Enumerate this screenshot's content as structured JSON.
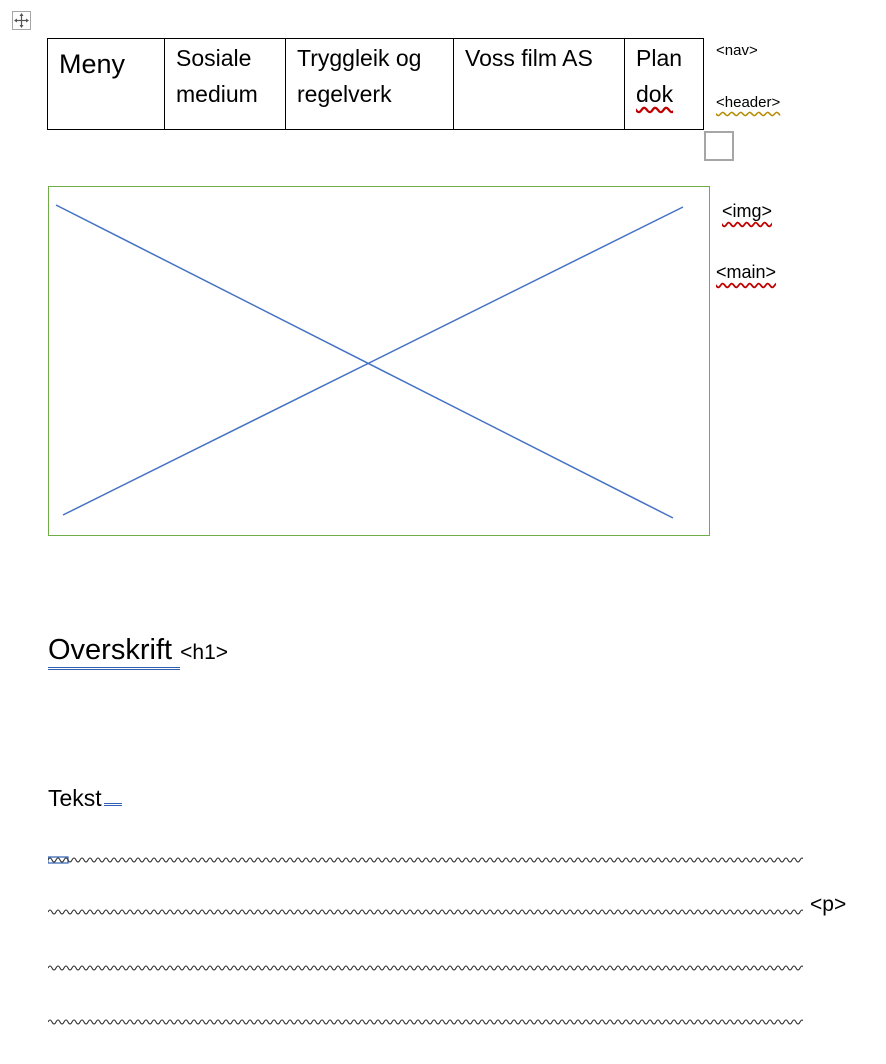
{
  "nav_table": {
    "cells": [
      {
        "lines": [
          "Meny"
        ]
      },
      {
        "lines": [
          "Sosiale",
          "medium"
        ]
      },
      {
        "lines": [
          "Tryggleik og",
          "regelverk"
        ]
      },
      {
        "lines": [
          "Voss film AS"
        ]
      },
      {
        "lines": [
          "Plan",
          "dok"
        ]
      }
    ]
  },
  "side_tags": {
    "nav": "<nav>",
    "header": "<header>",
    "img": "<img>",
    "main": "<main>"
  },
  "heading": {
    "text": "Overskrift ",
    "tag": "<h1>"
  },
  "body_text": {
    "label": "Tekst",
    "tag": "<p>"
  },
  "colors": {
    "image_border": "#70ad47",
    "placeholder_lines": "#4472c4",
    "spell_squiggle": "#c00000",
    "grammar_double": "#2e5fb5"
  },
  "icons": {
    "move_handle": "four-arrow-move-icon"
  }
}
